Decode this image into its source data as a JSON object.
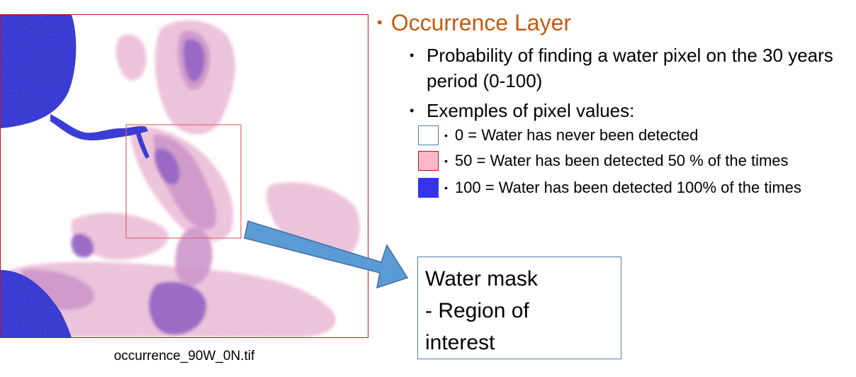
{
  "map": {
    "caption": "occurrence_90W_0N.tif",
    "colors": {
      "frame": "#c0151c",
      "water": "#2b2ecf",
      "light": "#e8b4d2",
      "mid": "#c98fc6",
      "dense": "#8e5cc0",
      "roi_box": "#e06a6a"
    }
  },
  "heading": {
    "bullet": "•",
    "text": "Occurrence Layer",
    "color": "#c55a11"
  },
  "bullets": {
    "probability": {
      "bullet": "•",
      "text": "Probability of finding a water pixel on the 30 years period (0-100)"
    },
    "examples": {
      "bullet": "•",
      "text": "Exemples of pixel values:"
    }
  },
  "legend": [
    {
      "bullet": "•",
      "text": "0 = Water has never been detected",
      "swatch_color": "#ffffff",
      "swatch_border": "#4e7fa8"
    },
    {
      "bullet": "•",
      "text": "50 = Water has been detected 50 % of the times",
      "swatch_color": "#f9b9c8",
      "swatch_border": "#c0151c"
    },
    {
      "bullet": "•",
      "text": "100 = Water has been detected 100% of the times",
      "swatch_color": "#3333ee",
      "swatch_border": "#3333ee"
    }
  ],
  "arrow": {
    "color": "#5b9bd5",
    "border": "#41719c"
  },
  "mask_box": {
    "lines": [
      "Water mask",
      "- Region of",
      "interest"
    ]
  }
}
